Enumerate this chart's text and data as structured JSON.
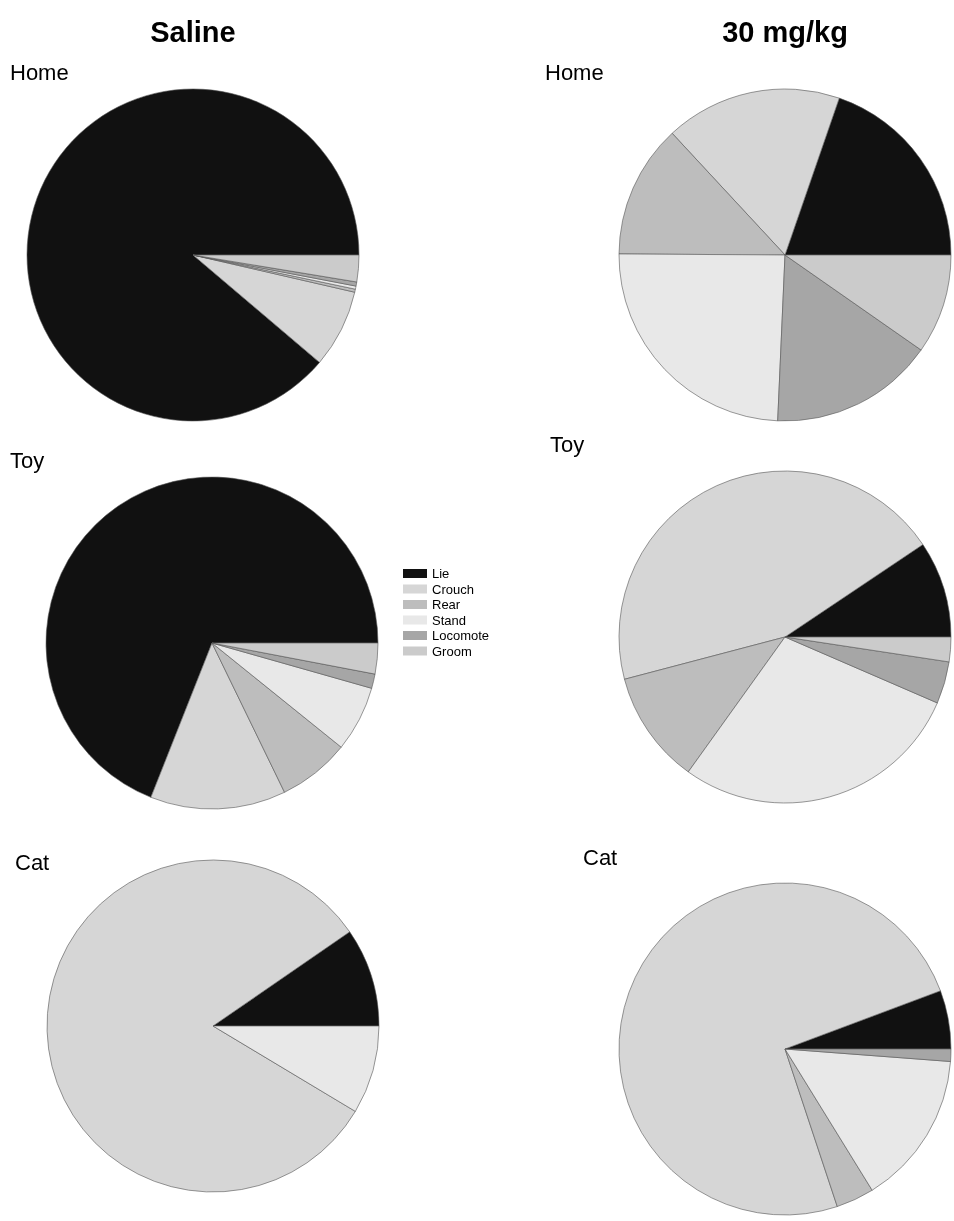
{
  "chart_data": [
    {
      "type": "pie",
      "title": "Home",
      "annotations": [
        "Saline"
      ],
      "categories": [
        null,
        null,
        null,
        null,
        null,
        null
      ],
      "values": [
        88.8,
        7.6,
        0.3,
        0.3,
        0.4,
        2.6
      ],
      "colors": [
        "#111111",
        "#d6d6d6",
        "#bdbdbd",
        "#e8e8e8",
        "#a6a6a6",
        "#cbcbcb"
      ],
      "legend": false
    },
    {
      "type": "pie",
      "title": "Home",
      "annotations": [
        "30 mg/kg"
      ],
      "categories": [
        null,
        null,
        null,
        null,
        null,
        null
      ],
      "values": [
        19.7,
        17.2,
        13,
        24.4,
        16,
        9.7
      ],
      "colors": [
        "#111111",
        "#d6d6d6",
        "#bdbdbd",
        "#e8e8e8",
        "#a6a6a6",
        "#cbcbcb"
      ],
      "legend": false
    },
    {
      "type": "pie",
      "title": "Toy",
      "categories": [
        "Lie",
        "Crouch",
        "Rear",
        "Stand",
        "Locomote",
        "Groom"
      ],
      "values": [
        69,
        13.2,
        7,
        6.4,
        1.4,
        3
      ],
      "colors": [
        "#111111",
        "#d6d6d6",
        "#bdbdbd",
        "#e8e8e8",
        "#a6a6a6",
        "#cbcbcb"
      ],
      "legend": "right"
    },
    {
      "type": "pie",
      "title": "Toy",
      "categories": [
        null,
        null,
        null,
        null,
        null,
        null
      ],
      "values": [
        9.4,
        44.7,
        11,
        28.4,
        4.1,
        2.4
      ],
      "colors": [
        "#111111",
        "#d6d6d6",
        "#bdbdbd",
        "#e8e8e8",
        "#a6a6a6",
        "#cbcbcb"
      ],
      "legend": false
    },
    {
      "type": "pie",
      "title": "Cat",
      "categories": [
        null,
        null,
        null
      ],
      "values": [
        9.6,
        81.8,
        8.6
      ],
      "colors": [
        "#111111",
        "#d6d6d6",
        "#e8e8e8"
      ],
      "legend": false
    },
    {
      "type": "pie",
      "title": "Cat",
      "categories": [
        null,
        null,
        null,
        null,
        null
      ],
      "values": [
        5.7,
        74.4,
        3.7,
        15,
        1.2
      ],
      "colors": [
        "#111111",
        "#d6d6d6",
        "#bdbdbd",
        "#e8e8e8",
        "#a6a6a6"
      ],
      "legend": false
    }
  ]
}
